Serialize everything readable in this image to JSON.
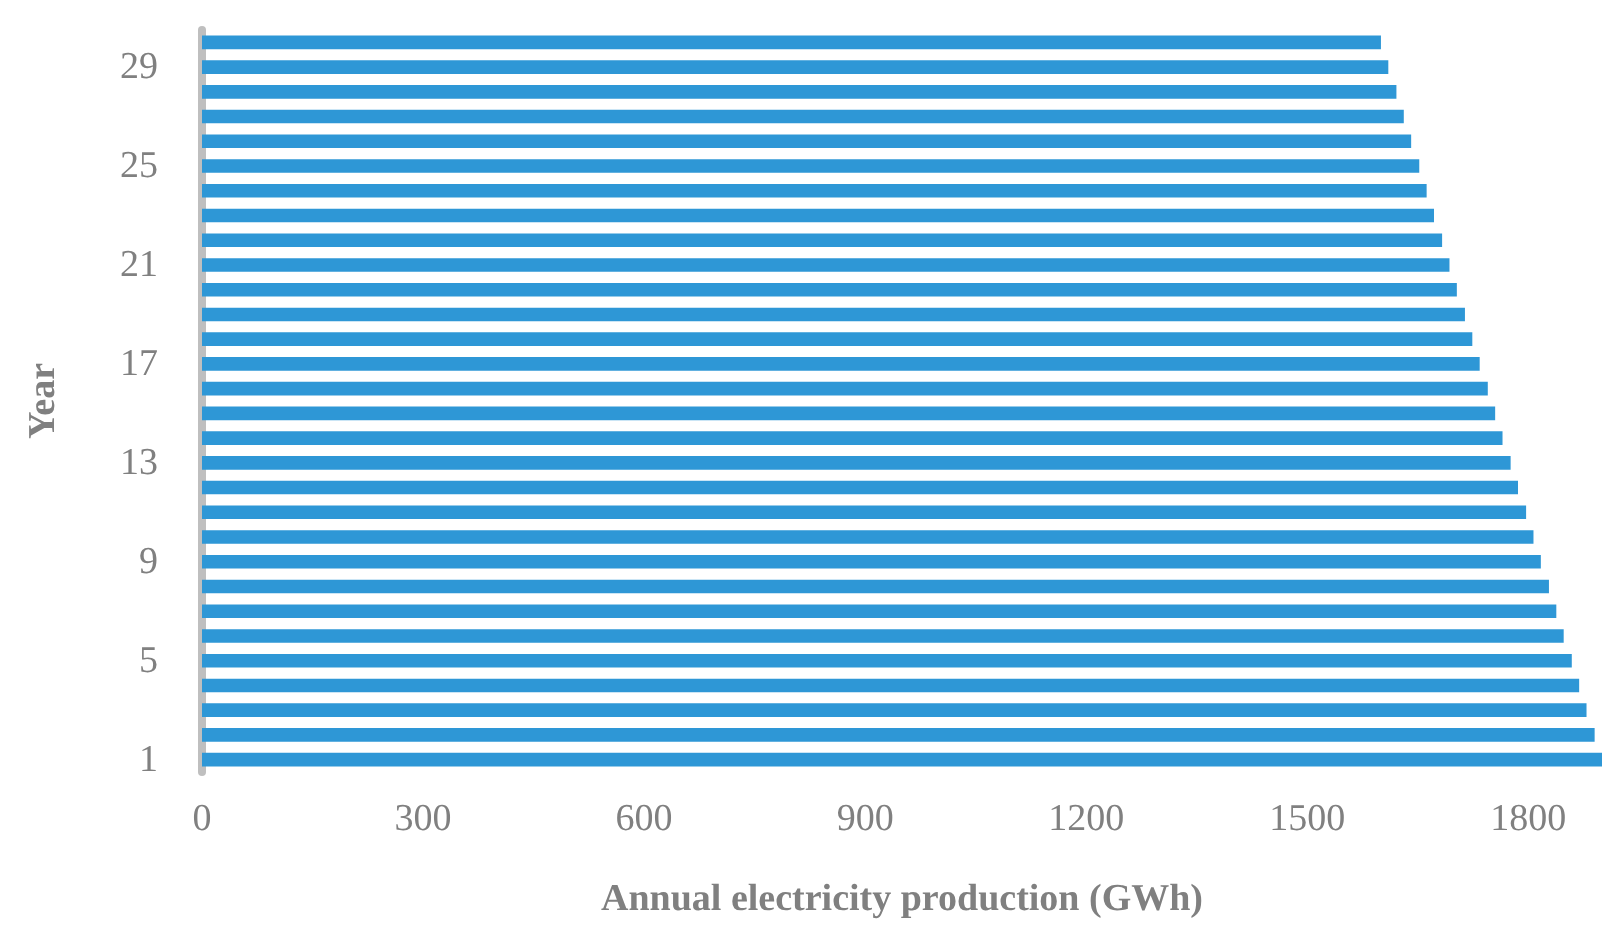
{
  "chart_data": {
    "type": "bar",
    "orientation": "horizontal",
    "xlabel": "Annual electricity production (GWh)",
    "ylabel": "Year",
    "categories": [
      null,
      "29",
      null,
      null,
      null,
      "25",
      null,
      null,
      null,
      "21",
      null,
      null,
      null,
      "17",
      null,
      null,
      null,
      "13",
      null,
      null,
      null,
      "9",
      null,
      null,
      null,
      "5",
      null,
      null,
      null,
      "1"
    ],
    "values": [
      1600,
      1610,
      1621,
      1631,
      1641,
      1652,
      1662,
      1672,
      1683,
      1693,
      1703,
      1714,
      1724,
      1734,
      1745,
      1755,
      1765,
      1776,
      1786,
      1797,
      1807,
      1817,
      1828,
      1838,
      1848,
      1859,
      1869,
      1879,
      1890,
      1900
    ],
    "color": "#2e97d6",
    "xlim": [
      0,
      1900
    ],
    "xticks": [
      0,
      300,
      600,
      900,
      1200,
      1500,
      1800
    ],
    "grid": false
  }
}
